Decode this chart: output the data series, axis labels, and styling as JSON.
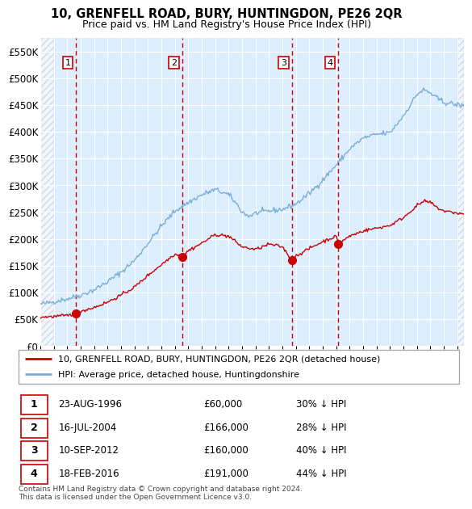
{
  "title": "10, GRENFELL ROAD, BURY, HUNTINGDON, PE26 2QR",
  "subtitle": "Price paid vs. HM Land Registry's House Price Index (HPI)",
  "ylim": [
    0,
    575000
  ],
  "yticks": [
    0,
    50000,
    100000,
    150000,
    200000,
    250000,
    300000,
    350000,
    400000,
    450000,
    500000,
    550000
  ],
  "xlim_start": 1994.0,
  "xlim_end": 2025.5,
  "sale_dates": [
    1996.644,
    2004.538,
    2012.692,
    2016.13
  ],
  "sale_prices": [
    60000,
    166000,
    160000,
    191000
  ],
  "sale_labels": [
    "1",
    "2",
    "3",
    "4"
  ],
  "sale_date_strs": [
    "23-AUG-1996",
    "16-JUL-2004",
    "10-SEP-2012",
    "18-FEB-2016"
  ],
  "sale_price_strs": [
    "£60,000",
    "£166,000",
    "£160,000",
    "£191,000"
  ],
  "sale_hpi_strs": [
    "30% ↓ HPI",
    "28% ↓ HPI",
    "40% ↓ HPI",
    "44% ↓ HPI"
  ],
  "legend_label_red": "10, GRENFELL ROAD, BURY, HUNTINGDON, PE26 2QR (detached house)",
  "legend_label_blue": "HPI: Average price, detached house, Huntingdonshire",
  "footer": "Contains HM Land Registry data © Crown copyright and database right 2024.\nThis data is licensed under the Open Government Licence v3.0.",
  "red_color": "#cc0000",
  "blue_color": "#7aaed6",
  "bg_chart": "#ddeeff",
  "grid_color": "#ffffff",
  "vline_color": "#cc0000",
  "hpi_anchors_x": [
    1994,
    1994.5,
    1995,
    1996,
    1997,
    1998,
    1999,
    2000,
    2001,
    2002,
    2003,
    2004,
    2005,
    2006,
    2007,
    2008,
    2008.5,
    2009,
    2009.5,
    2010,
    2011,
    2012,
    2013,
    2014,
    2015,
    2016,
    2017,
    2018,
    2019,
    2020,
    2021,
    2022,
    2022.5,
    2023,
    2023.5,
    2024,
    2025,
    2025.5
  ],
  "hpi_anchors_y": [
    78000,
    80000,
    83000,
    88000,
    95000,
    105000,
    120000,
    138000,
    160000,
    192000,
    224000,
    252000,
    268000,
    282000,
    292000,
    282000,
    268000,
    250000,
    242000,
    248000,
    252000,
    255000,
    265000,
    285000,
    310000,
    338000,
    368000,
    388000,
    395000,
    398000,
    430000,
    470000,
    478000,
    472000,
    462000,
    455000,
    450000,
    448000
  ],
  "red_anchors_x": [
    1994,
    1995,
    1996,
    1996.644,
    1997,
    1998,
    1999,
    2000,
    2001,
    2002,
    2003,
    2004,
    2004.538,
    2005,
    2006,
    2007,
    2008,
    2009,
    2010,
    2011,
    2012,
    2012.692,
    2013,
    2014,
    2015,
    2016,
    2016.13,
    2017,
    2018,
    2019,
    2020,
    2021,
    2022,
    2022.5,
    2023,
    2023.5,
    2024,
    2025,
    2025.5
  ],
  "red_anchors_y": [
    54000,
    55000,
    57000,
    60000,
    65000,
    72000,
    82000,
    95000,
    110000,
    132000,
    152000,
    172000,
    166000,
    178000,
    192000,
    208000,
    205000,
    185000,
    180000,
    190000,
    185000,
    160000,
    168000,
    182000,
    195000,
    205000,
    191000,
    205000,
    215000,
    220000,
    225000,
    240000,
    262000,
    270000,
    268000,
    258000,
    252000,
    248000,
    246000
  ]
}
